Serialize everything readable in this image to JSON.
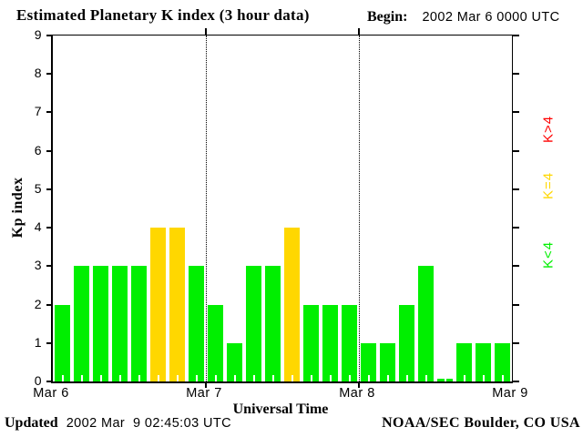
{
  "title": "Estimated Planetary K index (3 hour data)",
  "begin": {
    "label": "Begin:",
    "value": "2002 Mar 6 0000 UTC"
  },
  "footer": {
    "updated_label": "Updated",
    "updated_value": "2002 Mar  9 02:45:03 UTC",
    "credit": "NOAA/SEC Boulder, CO USA"
  },
  "legend": {
    "gt": {
      "label": "K>4",
      "color": "#ff0000"
    },
    "eq": {
      "label": "K=4",
      "color": "#ffd700"
    },
    "lt": {
      "label": "K<4",
      "color": "#00ef00"
    }
  },
  "chart_data": {
    "type": "bar",
    "title": "Estimated Planetary K index (3 hour data)",
    "xlabel": "Universal Time",
    "ylabel": "Kp index",
    "ylim": [
      0,
      9
    ],
    "y_ticks": [
      0,
      1,
      2,
      3,
      4,
      5,
      6,
      7,
      8,
      9
    ],
    "grid": "dotted vertical lines at day boundaries",
    "legend_position": "right, rotated 90deg",
    "interval_hours": 3,
    "day_labels": [
      "Mar 6",
      "Mar 7",
      "Mar 8",
      "Mar 9"
    ],
    "values": [
      2,
      3,
      3,
      3,
      3,
      4,
      4,
      3,
      2,
      1,
      3,
      3,
      4,
      2,
      2,
      2,
      1,
      1,
      2,
      3,
      0,
      1,
      1,
      1
    ],
    "series": [
      {
        "name": "Mar 6",
        "values": [
          2,
          3,
          3,
          3,
          3,
          4,
          4,
          3
        ]
      },
      {
        "name": "Mar 7",
        "values": [
          2,
          1,
          3,
          3,
          4,
          2,
          2,
          2
        ]
      },
      {
        "name": "Mar 8",
        "values": [
          1,
          1,
          2,
          3,
          0,
          1,
          1,
          1
        ]
      }
    ],
    "colors": {
      "k_lt_4": "#00ef00",
      "k_eq_4": "#ffd700",
      "k_gt_4": "#ff0000"
    }
  }
}
